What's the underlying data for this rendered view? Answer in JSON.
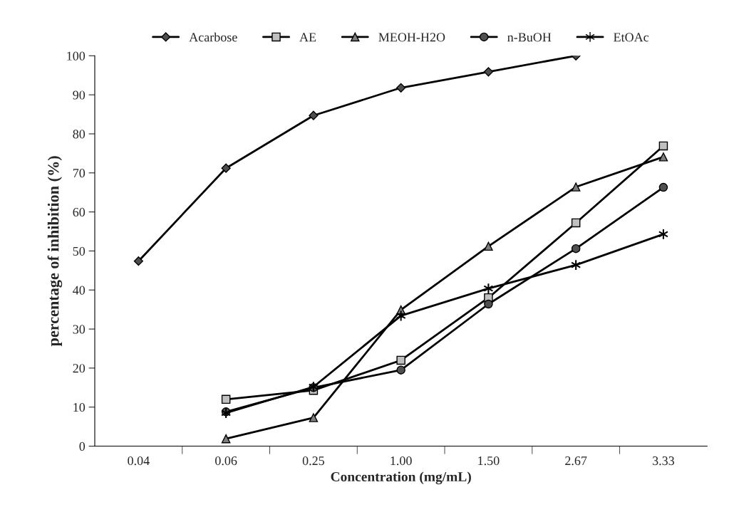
{
  "chart_data": {
    "type": "line",
    "xlabel": "Concentration (mg/mL)",
    "ylabel": "percentage of inhibition (%)",
    "categories": [
      "0.04",
      "0.06",
      "0.25",
      "1.00",
      "1.50",
      "2.67",
      "3.33"
    ],
    "series": [
      {
        "name": "Acarbose",
        "color": "#4d4d4d",
        "marker": "diamond",
        "values": [
          47.4,
          71.2,
          84.7,
          91.8,
          95.9,
          100,
          null
        ]
      },
      {
        "name": "AE",
        "color": "#c0c0c0",
        "marker": "square",
        "values": [
          null,
          12,
          14.3,
          22,
          38,
          57.2,
          76.9
        ]
      },
      {
        "name": "MEOH-H2O",
        "color": "#7f7f7f",
        "marker": "triangle",
        "values": [
          null,
          1.9,
          7.3,
          34.9,
          51.2,
          66.4,
          74.1
        ]
      },
      {
        "name": "n-BuOH",
        "color": "#505050",
        "marker": "circle",
        "values": [
          null,
          8.8,
          15,
          19.5,
          36.4,
          50.6,
          66.3
        ]
      },
      {
        "name": "EtOAc",
        "color": "#000000",
        "marker": "cross",
        "values": [
          null,
          8.5,
          15.2,
          33.4,
          40.4,
          46.4,
          54.3
        ]
      }
    ],
    "ylim": [
      0,
      100
    ],
    "yticks": [
      0,
      10,
      20,
      30,
      40,
      50,
      60,
      70,
      80,
      90,
      100
    ],
    "grid": false,
    "legend": "top",
    "line_style": "solid"
  }
}
